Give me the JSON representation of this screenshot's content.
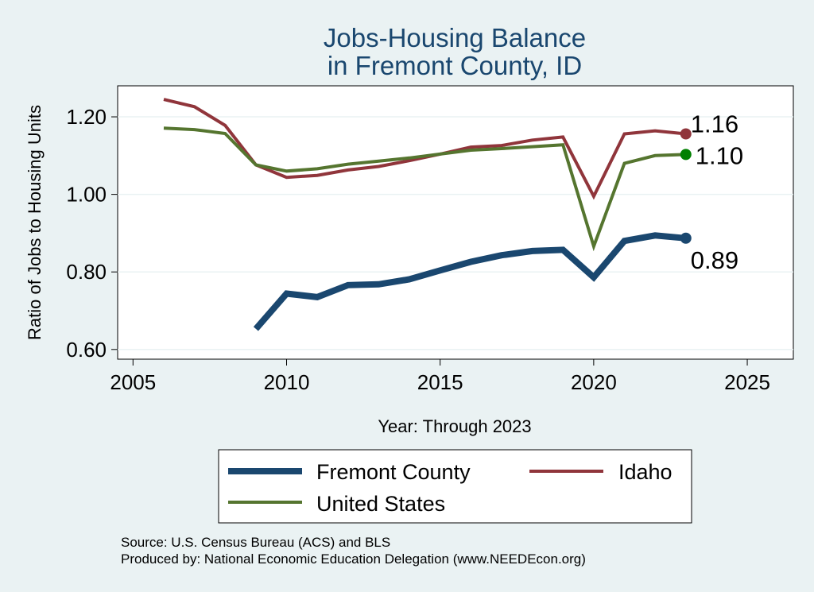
{
  "chart_data": {
    "type": "line",
    "title": [
      "Jobs-Housing Balance",
      "in Fremont County, ID"
    ],
    "xlabel": "Year: Through 2023",
    "ylabel": "Ratio of Jobs to Housing Units",
    "xlim": [
      2004.5,
      2026.5
    ],
    "ylim": [
      0.575,
      1.28
    ],
    "xticks": [
      2005,
      2010,
      2015,
      2020,
      2025
    ],
    "yticks": [
      0.6,
      0.8,
      1.0,
      1.2
    ],
    "ytick_labels": [
      "0.60",
      "0.80",
      "1.00",
      "1.20"
    ],
    "grid": true,
    "legend_position": "bottom",
    "series": [
      {
        "name": "Fremont County",
        "color": "#1A476F",
        "line_width": 8,
        "end_label": "0.89",
        "points": [
          [
            2009,
            0.653
          ],
          [
            2010,
            0.744
          ],
          [
            2011,
            0.735
          ],
          [
            2012,
            0.766
          ],
          [
            2013,
            0.768
          ],
          [
            2014,
            0.781
          ],
          [
            2015,
            0.804
          ],
          [
            2016,
            0.826
          ],
          [
            2017,
            0.843
          ],
          [
            2018,
            0.854
          ],
          [
            2019,
            0.857
          ],
          [
            2020,
            0.786
          ],
          [
            2021,
            0.88
          ],
          [
            2022,
            0.894
          ],
          [
            2023,
            0.887
          ]
        ]
      },
      {
        "name": "Idaho",
        "color": "#90353B",
        "line_width": 4,
        "end_label": "1.16",
        "points": [
          [
            2006,
            1.245
          ],
          [
            2007,
            1.226
          ],
          [
            2008,
            1.178
          ],
          [
            2009,
            1.076
          ],
          [
            2010,
            1.044
          ],
          [
            2011,
            1.049
          ],
          [
            2012,
            1.063
          ],
          [
            2013,
            1.072
          ],
          [
            2014,
            1.087
          ],
          [
            2015,
            1.104
          ],
          [
            2016,
            1.122
          ],
          [
            2017,
            1.126
          ],
          [
            2018,
            1.14
          ],
          [
            2019,
            1.148
          ],
          [
            2020,
            0.995
          ],
          [
            2021,
            1.156
          ],
          [
            2022,
            1.164
          ],
          [
            2023,
            1.156
          ]
        ]
      },
      {
        "name": "United States",
        "color": "#55752F",
        "line_width": 4,
        "marker_color": "#008000",
        "end_label": "1.10",
        "points": [
          [
            2006,
            1.171
          ],
          [
            2007,
            1.167
          ],
          [
            2008,
            1.157
          ],
          [
            2009,
            1.076
          ],
          [
            2010,
            1.06
          ],
          [
            2011,
            1.066
          ],
          [
            2012,
            1.078
          ],
          [
            2013,
            1.086
          ],
          [
            2014,
            1.094
          ],
          [
            2015,
            1.104
          ],
          [
            2016,
            1.114
          ],
          [
            2017,
            1.118
          ],
          [
            2018,
            1.123
          ],
          [
            2019,
            1.128
          ],
          [
            2020,
            0.866
          ],
          [
            2021,
            1.08
          ],
          [
            2022,
            1.1
          ],
          [
            2023,
            1.103
          ]
        ]
      }
    ],
    "source_lines": [
      "Source: U.S. Census Bureau (ACS) and BLS",
      "Produced by: National Economic Education Delegation (www.NEEDEcon.org)"
    ]
  }
}
